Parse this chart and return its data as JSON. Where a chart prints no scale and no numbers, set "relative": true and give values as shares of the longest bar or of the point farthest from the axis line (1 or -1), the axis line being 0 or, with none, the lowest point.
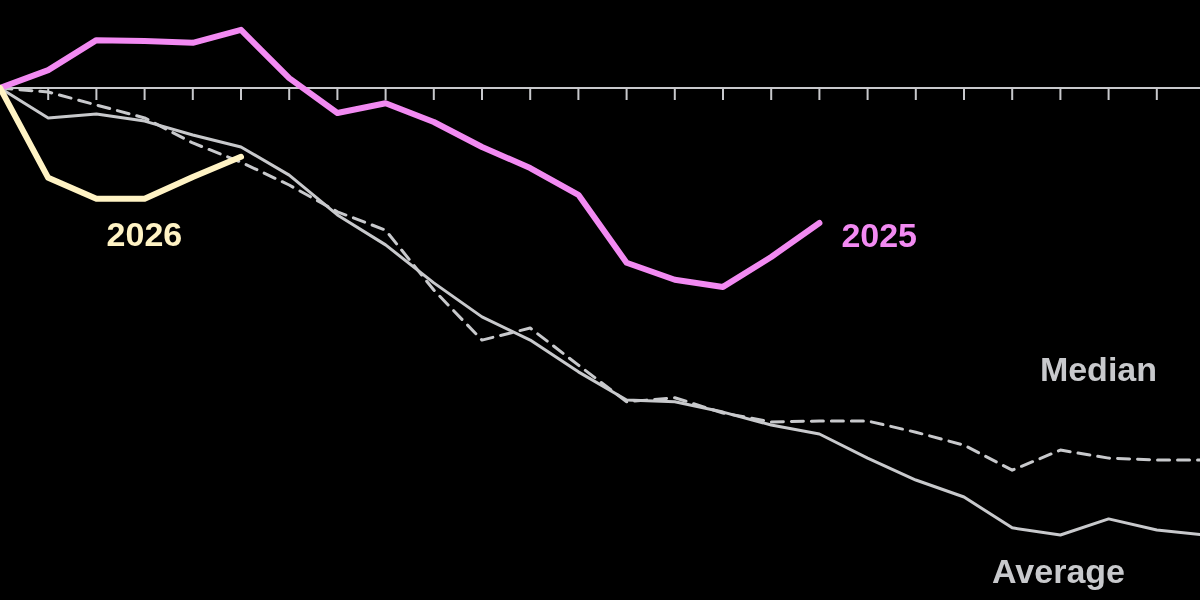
{
  "chart_data": {
    "type": "line",
    "relative": true,
    "legend": false,
    "categories": [
      null,
      null,
      null,
      null,
      null,
      null,
      null,
      null,
      null,
      null,
      null,
      null,
      null,
      null,
      null,
      null,
      null,
      null,
      null,
      null,
      null,
      null,
      null,
      null,
      null,
      null
    ],
    "series": [
      {
        "name": "Average",
        "color": "#c8c9cc",
        "line_style": "solid",
        "values": [
          0,
          -0.067,
          -0.058,
          -0.074,
          -0.105,
          -0.132,
          -0.195,
          -0.284,
          -0.351,
          -0.436,
          -0.512,
          -0.564,
          -0.635,
          -0.698,
          -0.702,
          -0.725,
          -0.754,
          -0.774,
          -0.828,
          -0.877,
          -0.915,
          -0.984,
          -1,
          -0.964,
          -0.989,
          -1
        ]
      },
      {
        "name": "Median",
        "color": "#c8c9cc",
        "line_style": "dashed",
        "values": [
          0,
          -0.009,
          -0.038,
          -0.067,
          -0.123,
          -0.166,
          -0.217,
          -0.277,
          -0.318,
          -0.452,
          -0.564,
          -0.537,
          -0.62,
          -0.702,
          -0.693,
          -0.727,
          -0.747,
          -0.745,
          -0.745,
          -0.77,
          -0.799,
          -0.855,
          -0.81,
          -0.828,
          -0.832,
          -0.832
        ]
      },
      {
        "name": "2025",
        "color": "#f28af2",
        "line_style": "solid",
        "values": [
          0,
          0.04,
          0.107,
          0.105,
          0.101,
          0.13,
          0.022,
          -0.056,
          -0.034,
          -0.076,
          -0.132,
          -0.179,
          -0.239,
          -0.391,
          -0.429,
          -0.445,
          -0.378,
          -0.302,
          null,
          null,
          null,
          null,
          null,
          null,
          null,
          null
        ]
      },
      {
        "name": "2026",
        "color": "#fff3c4",
        "line_style": "solid",
        "values": [
          0,
          -0.201,
          -0.248,
          -0.248,
          -0.199,
          -0.154,
          null,
          null,
          null,
          null,
          null,
          null,
          null,
          null,
          null,
          null,
          null,
          null,
          null,
          null,
          null,
          null,
          null,
          null,
          null,
          null
        ]
      }
    ]
  }
}
